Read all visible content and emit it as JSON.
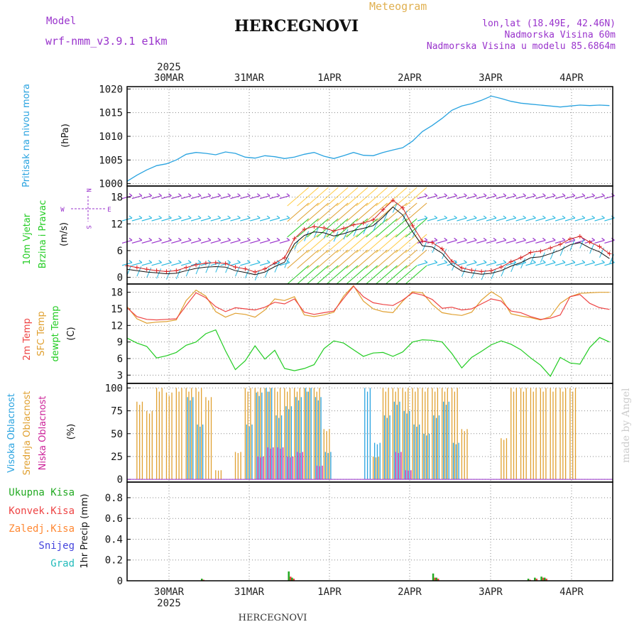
{
  "header": {
    "model_label": "Model",
    "model_name": "wrf-nmm_v3.9.1 e1km",
    "title": "HERCEGNOVI",
    "meteogram": "Meteogram",
    "coords": "lon,lat (18.49E, 42.46N)",
    "altitude": "Nadmorska Visina 60m",
    "model_altitude": "Nadmorska Visina u modelu 85.6864m",
    "footer_title": "HERCEGNOVI",
    "watermark": "made by Angel"
  },
  "colors": {
    "pressure": "#29a3e0",
    "wind_green": "#22cc22",
    "wind_purple": "#9933cc",
    "temp2m": "#ee4444",
    "sfc": "#e0a030",
    "dewpt": "#22cc22",
    "cloud_high": "#29a3e0",
    "cloud_mid": "#e0a030",
    "cloud_low": "#cc2299",
    "precip_total": "#22aa22",
    "precip_conv": "#ee4444",
    "precip_frz": "#ff8833",
    "precip_snow": "#4444dd",
    "precip_grad": "#22bbbb"
  },
  "chart_data": [
    {
      "type": "line",
      "panel": "pressure",
      "ylabel": "(hPa)",
      "side_labels": [
        "Pritisak na nivou mora"
      ],
      "y_ticks": [
        1000,
        1005,
        1010,
        1015,
        1020
      ],
      "ylim": [
        999.5,
        1020.5
      ],
      "top_axis": {
        "year": "2025",
        "dates": [
          "30MAR",
          "31MAR",
          "1APR",
          "2APR",
          "3APR",
          "4APR"
        ]
      },
      "x_hours": [
        0,
        3,
        6,
        9,
        12,
        15,
        18,
        21,
        24,
        27,
        30,
        33,
        36,
        39,
        42,
        45,
        48,
        51,
        54,
        57,
        60,
        63,
        66,
        69,
        72,
        75,
        78,
        81,
        84,
        87,
        90,
        93,
        96,
        99,
        102,
        105,
        108,
        111,
        114,
        117,
        120,
        123,
        126,
        129,
        132,
        135,
        138,
        141,
        144,
        147
      ],
      "series": [
        {
          "values": [
            1000.5,
            1001.8,
            1002.9,
            1003.8,
            1004.2,
            1005.0,
            1006.2,
            1006.6,
            1006.4,
            1006.1,
            1006.7,
            1006.4,
            1005.6,
            1005.4,
            1005.9,
            1005.7,
            1005.3,
            1005.6,
            1006.2,
            1006.6,
            1005.8,
            1005.3,
            1005.9,
            1006.6,
            1006.0,
            1005.9,
            1006.6,
            1007.1,
            1007.6,
            1009.0,
            1011.0,
            1012.3,
            1013.8,
            1015.5,
            1016.4,
            1016.9,
            1017.6,
            1018.5,
            1018.0,
            1017.4,
            1017.0,
            1016.8,
            1016.6,
            1016.4,
            1016.2,
            1016.4,
            1016.6,
            1016.5,
            1016.6,
            1016.5
          ]
        }
      ]
    },
    {
      "type": "line",
      "panel": "wind",
      "ylabel": "(m/s)",
      "side_labels": [
        "10m Vjetar",
        "Brzina i Pravac"
      ],
      "compass": {
        "n": "N",
        "s": "S",
        "w": "W",
        "e": "E"
      },
      "y_ticks": [
        0,
        6,
        12,
        18
      ],
      "ylim": [
        -1.5,
        20.5
      ],
      "x_hours": [
        0,
        3,
        6,
        9,
        12,
        15,
        18,
        21,
        24,
        27,
        30,
        33,
        36,
        39,
        42,
        45,
        48,
        51,
        54,
        57,
        60,
        63,
        66,
        69,
        72,
        75,
        78,
        81,
        84,
        87,
        90,
        93,
        96,
        99,
        102,
        105,
        108,
        111,
        114,
        117,
        120,
        123,
        126,
        129,
        132,
        135,
        138,
        141,
        144,
        147
      ],
      "series": [
        {
          "name": "speed",
          "values": [
            1.8,
            1.5,
            1.2,
            1.0,
            0.8,
            0.9,
            1.5,
            2.0,
            2.3,
            2.4,
            2.3,
            1.5,
            1.1,
            0.6,
            1.2,
            2.4,
            3.4,
            7.5,
            9.4,
            10.2,
            10.0,
            9.3,
            9.8,
            10.5,
            11.0,
            11.6,
            13.5,
            15.8,
            14.0,
            10.2,
            7.1,
            6.8,
            5.4,
            2.8,
            1.4,
            1.0,
            0.7,
            0.9,
            1.5,
            2.5,
            3.3,
            4.4,
            4.6,
            5.3,
            6.1,
            7.3,
            7.8,
            6.6,
            5.7,
            4.2
          ]
        },
        {
          "name": "gust",
          "values": [
            2.6,
            2.2,
            1.8,
            1.5,
            1.3,
            1.5,
            2.2,
            2.8,
            3.2,
            3.3,
            3.1,
            2.3,
            1.9,
            1.2,
            1.9,
            3.2,
            4.4,
            8.7,
            10.8,
            11.4,
            11.1,
            10.4,
            11.0,
            11.8,
            12.2,
            12.9,
            15.2,
            17.3,
            15.6,
            11.6,
            8.1,
            7.8,
            6.4,
            3.6,
            2.1,
            1.6,
            1.3,
            1.5,
            2.3,
            3.5,
            4.4,
            5.6,
            5.9,
            6.6,
            7.4,
            8.6,
            9.2,
            7.9,
            6.9,
            5.3
          ]
        }
      ]
    },
    {
      "type": "line",
      "panel": "temperature",
      "ylabel": "(C)",
      "side_labels": [
        "2m Temp",
        "SFC Temp",
        "dewpt Temp"
      ],
      "y_ticks": [
        3,
        6,
        9,
        12,
        15,
        18
      ],
      "ylim": [
        1.5,
        19.5
      ],
      "x_hours": [
        0,
        3,
        6,
        9,
        12,
        15,
        18,
        21,
        24,
        27,
        30,
        33,
        36,
        39,
        42,
        45,
        48,
        51,
        54,
        57,
        60,
        63,
        66,
        69,
        72,
        75,
        78,
        81,
        84,
        87,
        90,
        93,
        96,
        99,
        102,
        105,
        108,
        111,
        114,
        117,
        120,
        123,
        126,
        129,
        132,
        135,
        138,
        141,
        144,
        147
      ],
      "series": [
        {
          "name": "2m Temp",
          "values": [
            15.2,
            13.6,
            13.1,
            13.0,
            13.1,
            13.2,
            15.6,
            17.9,
            17.0,
            15.4,
            14.5,
            15.2,
            15.0,
            14.8,
            15.3,
            16.2,
            15.9,
            16.8,
            14.4,
            14.0,
            14.3,
            14.6,
            16.9,
            19.1,
            17.2,
            16.1,
            15.8,
            15.6,
            16.6,
            17.9,
            17.5,
            16.7,
            15.1,
            15.3,
            14.8,
            15.0,
            15.9,
            16.8,
            16.4,
            14.6,
            14.3,
            13.6,
            13.1,
            13.3,
            13.9,
            17.2,
            17.6,
            16.0,
            15.2,
            14.9
          ]
        },
        {
          "name": "SFC Temp",
          "values": [
            15.4,
            13.2,
            12.4,
            12.6,
            12.7,
            13.0,
            16.5,
            18.4,
            17.3,
            14.5,
            13.5,
            14.2,
            14.0,
            13.5,
            14.8,
            16.8,
            16.5,
            17.2,
            13.9,
            13.6,
            13.9,
            14.4,
            17.3,
            19.2,
            16.4,
            15.0,
            14.5,
            14.3,
            16.4,
            18.1,
            17.9,
            15.8,
            14.3,
            14.0,
            13.8,
            14.4,
            16.6,
            18.1,
            17.0,
            14.1,
            13.7,
            13.4,
            13.0,
            13.6,
            16.0,
            17.2,
            17.8,
            17.9,
            18.0,
            18.0
          ]
        },
        {
          "name": "dewpt Temp",
          "values": [
            9.7,
            8.8,
            8.2,
            6.1,
            6.5,
            7.1,
            8.4,
            9.0,
            10.5,
            11.2,
            7.4,
            4.0,
            5.6,
            8.3,
            5.9,
            7.5,
            4.2,
            3.8,
            4.2,
            4.9,
            7.8,
            9.2,
            8.8,
            7.6,
            6.4,
            7.0,
            7.1,
            6.4,
            7.2,
            9.0,
            9.4,
            9.3,
            9.0,
            6.9,
            4.3,
            6.2,
            7.3,
            8.5,
            9.2,
            8.6,
            7.6,
            6.1,
            4.8,
            2.8,
            6.2,
            5.2,
            5.0,
            8.0,
            9.8,
            9.0
          ]
        }
      ]
    },
    {
      "type": "bar",
      "panel": "clouds",
      "ylabel": "(%)",
      "side_labels": [
        "Visoka Oblacnost",
        "Srednja Oblacnost",
        "Niska Oblacnost"
      ],
      "y_ticks": [
        0,
        25,
        50,
        75,
        100
      ],
      "ylim": [
        -3,
        105
      ],
      "x_hours": [
        0,
        3,
        6,
        9,
        12,
        15,
        18,
        21,
        24,
        27,
        30,
        33,
        36,
        39,
        42,
        45,
        48,
        51,
        54,
        57,
        60,
        63,
        66,
        69,
        72,
        75,
        78,
        81,
        84,
        87,
        90,
        93,
        96,
        99,
        102,
        105,
        108,
        111,
        114,
        117,
        120,
        123,
        126,
        129,
        132,
        135,
        138,
        141,
        144,
        147
      ],
      "series": [
        {
          "name": "Srednja Oblacnost",
          "values": [
            0,
            85,
            75,
            100,
            95,
            100,
            100,
            100,
            90,
            10,
            0,
            30,
            100,
            100,
            100,
            100,
            100,
            100,
            100,
            100,
            55,
            0,
            0,
            0,
            0,
            25,
            100,
            100,
            100,
            100,
            100,
            100,
            100,
            100,
            55,
            0,
            0,
            0,
            45,
            100,
            100,
            100,
            100,
            100,
            100,
            100,
            0,
            0,
            0,
            0
          ]
        },
        {
          "name": "Visoka Oblacnost",
          "values": [
            0,
            0,
            0,
            0,
            0,
            0,
            90,
            60,
            0,
            0,
            0,
            0,
            60,
            95,
            100,
            70,
            80,
            90,
            100,
            90,
            30,
            0,
            0,
            0,
            100,
            40,
            70,
            85,
            75,
            60,
            50,
            70,
            85,
            40,
            0,
            0,
            0,
            0,
            0,
            0,
            0,
            0,
            0,
            0,
            0,
            0,
            0,
            0,
            0,
            0
          ]
        },
        {
          "name": "Niska Oblacnost",
          "values": [
            0,
            0,
            0,
            0,
            0,
            0,
            0,
            0,
            0,
            0,
            0,
            0,
            0,
            25,
            35,
            35,
            25,
            30,
            0,
            15,
            0,
            0,
            0,
            0,
            0,
            0,
            0,
            30,
            10,
            0,
            0,
            0,
            0,
            0,
            0,
            0,
            0,
            0,
            0,
            0,
            0,
            0,
            0,
            0,
            0,
            0,
            0,
            0,
            0,
            0
          ]
        }
      ]
    },
    {
      "type": "bar",
      "panel": "precipitation",
      "ylabel": "1hr Precip (mm)",
      "side_labels": [
        "Ukupna Kisa",
        "Konvek.Kisa",
        "Zaledj.Kisa",
        "Snijeg",
        "Grad"
      ],
      "y_ticks": [
        0,
        0.2,
        0.4,
        0.6,
        0.8
      ],
      "y_tick_labels": [
        "0",
        "0.2",
        "0.4",
        "0.6",
        "0.8"
      ],
      "ylim": [
        0,
        0.95
      ],
      "bottom_axis": {
        "dates": [
          "30MAR",
          "31MAR",
          "1APR",
          "2APR",
          "3APR",
          "4APR"
        ],
        "year": "2025"
      },
      "bars": [
        {
          "hour": 22.5,
          "total": 0.02,
          "conv": 0.01
        },
        {
          "hour": 49.0,
          "total": 0.09,
          "conv": 0.04
        },
        {
          "hour": 50.0,
          "total": 0.03,
          "conv": 0.02
        },
        {
          "hour": 93.0,
          "total": 0.07,
          "conv": 0.03
        },
        {
          "hour": 94.0,
          "total": 0.03,
          "conv": 0.02
        },
        {
          "hour": 122.0,
          "total": 0.02,
          "conv": 0.01
        },
        {
          "hour": 124.0,
          "total": 0.03,
          "conv": 0.02
        },
        {
          "hour": 126.0,
          "total": 0.04,
          "conv": 0.03
        },
        {
          "hour": 127.0,
          "total": 0.03,
          "conv": 0.02
        }
      ]
    }
  ]
}
